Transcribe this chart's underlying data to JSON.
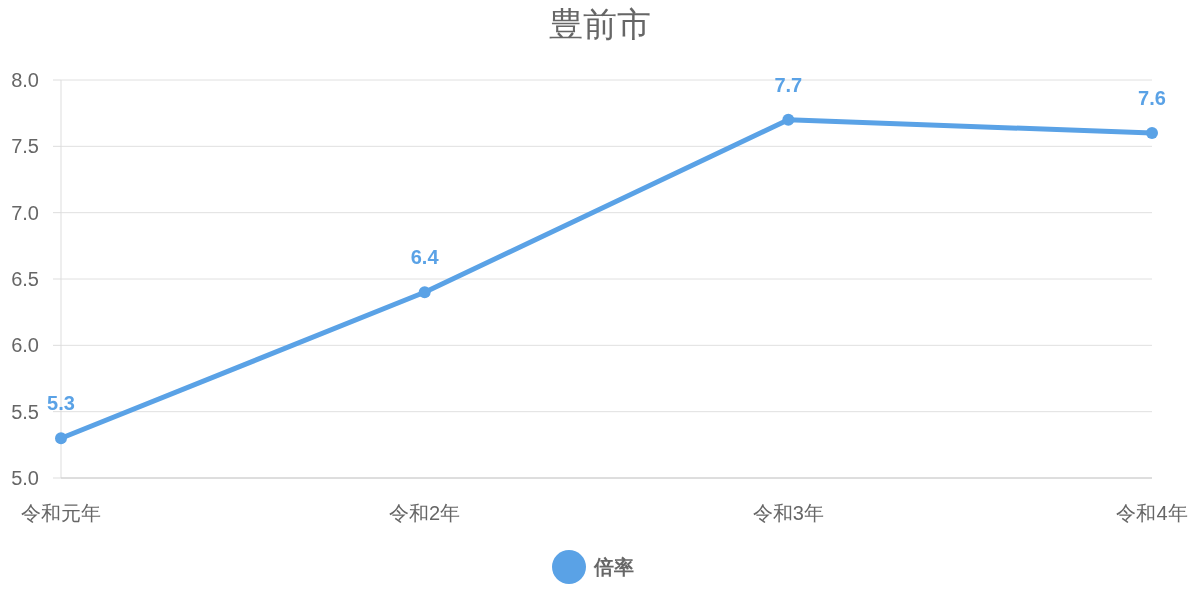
{
  "chart_data": {
    "type": "line",
    "title": "豊前市",
    "categories": [
      "令和元年",
      "令和2年",
      "令和3年",
      "令和4年"
    ],
    "series": [
      {
        "name": "倍率",
        "color": "#5aa2e6",
        "values": [
          5.3,
          6.4,
          7.7,
          7.6
        ]
      }
    ],
    "ylim": [
      5,
      8
    ],
    "yticks": [
      {
        "value": 5,
        "label": "5.0"
      },
      {
        "value": 5.5,
        "label": "5.5"
      },
      {
        "value": 6,
        "label": "6.0"
      },
      {
        "value": 6.5,
        "label": "6.5"
      },
      {
        "value": 7,
        "label": "7.0"
      },
      {
        "value": 7.5,
        "label": "7.5"
      },
      {
        "value": 8,
        "label": "8.0"
      }
    ],
    "grid": "y",
    "legend": "bottom",
    "marker": "circle",
    "line_style": "solid",
    "data_labels": true
  }
}
